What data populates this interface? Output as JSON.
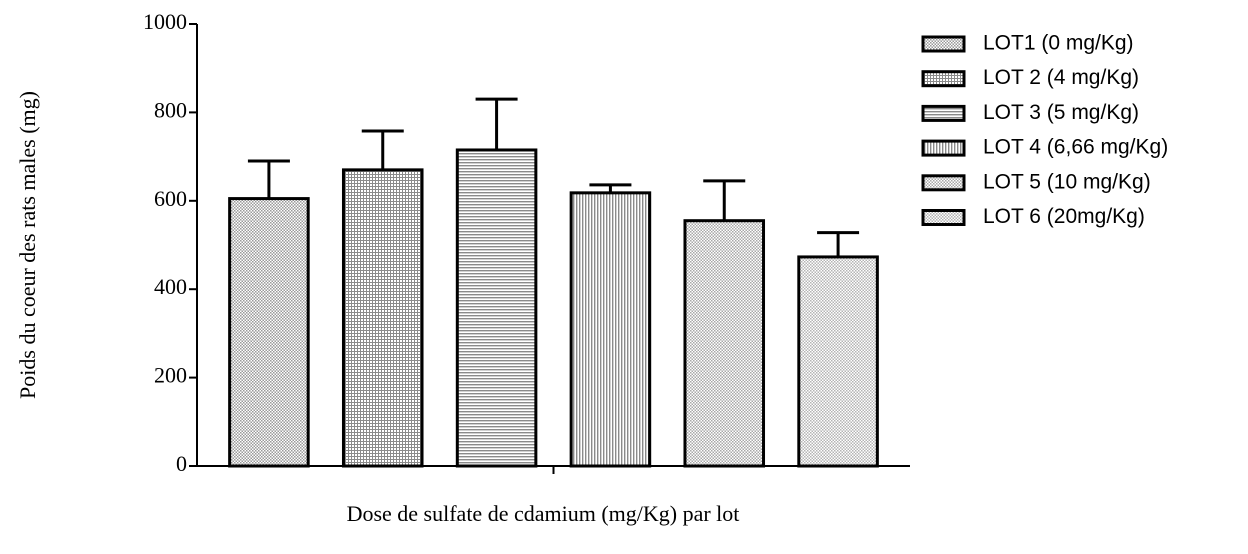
{
  "chart_data": {
    "type": "bar",
    "categories": [
      null
    ],
    "ylabel": "Poids du coeur des rats males  (mg)",
    "xlabel": "Dose de sulfate de cdamium (mg/Kg) par lot",
    "ylim": [
      0,
      1000
    ],
    "yticks": [
      0,
      200,
      400,
      600,
      800,
      1000
    ],
    "legend": "right",
    "series": [
      {
        "name": "LOT1 (0 mg/Kg)",
        "color": "#9a9a9a",
        "pattern": "dots",
        "values": [
          605
        ],
        "errors": [
          85
        ]
      },
      {
        "name": "LOT 2 (4 mg/Kg)",
        "color": "#8a8a8a",
        "pattern": "crosshatch",
        "values": [
          670
        ],
        "errors": [
          88
        ]
      },
      {
        "name": "LOT 3 (5 mg/Kg)",
        "color": "#8a8a8a",
        "pattern": "hlines",
        "values": [
          715
        ],
        "errors": [
          115
        ]
      },
      {
        "name": "LOT 4 (6,66 mg/Kg)",
        "color": "#8a8a8a",
        "pattern": "vlines",
        "values": [
          618
        ],
        "errors": [
          18
        ]
      },
      {
        "name": "LOT 5 (10 mg/Kg)",
        "color": "#a8a8a8",
        "pattern": "dots",
        "values": [
          555
        ],
        "errors": [
          90
        ]
      },
      {
        "name": "LOT 6 (20mg/Kg)",
        "color": "#b4b4b4",
        "pattern": "dots",
        "values": [
          473
        ],
        "errors": [
          55
        ]
      }
    ]
  }
}
